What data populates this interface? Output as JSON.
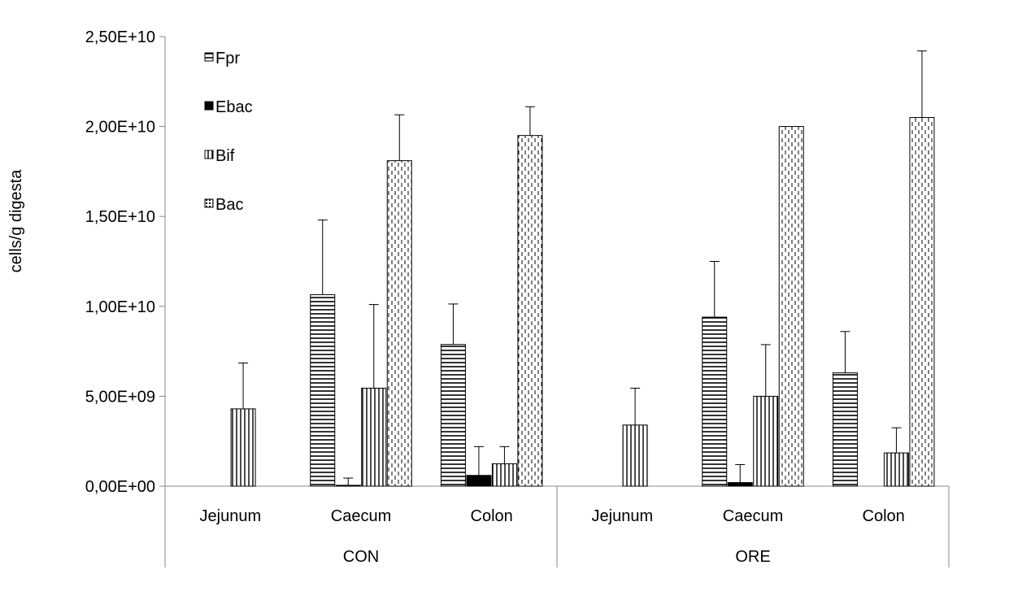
{
  "chart_data": {
    "type": "bar",
    "ylabel": "cells/g digesta",
    "ylim": [
      0,
      25000000000
    ],
    "yticks": [
      {
        "value": 0,
        "label": "0,00E+00"
      },
      {
        "value": 5000000000,
        "label": "5,00E+09"
      },
      {
        "value": 10000000000,
        "label": "1,00E+10"
      },
      {
        "value": 15000000000,
        "label": "1,50E+10"
      },
      {
        "value": 20000000000,
        "label": "2,00E+10"
      },
      {
        "value": 25000000000,
        "label": "2,50E+10"
      }
    ],
    "groups": [
      "CON",
      "ORE"
    ],
    "categories": [
      "Jejunum",
      "Caecum",
      "Colon",
      "Jejunum",
      "Caecum",
      "Colon"
    ],
    "legend_position": "top-left",
    "grid": false,
    "series": [
      {
        "name": "Fpr",
        "pattern": "horizontal-lines",
        "values": [
          0,
          10650000000,
          7880000000,
          0,
          9400000000,
          6300000000
        ],
        "errors": [
          0,
          4150000000,
          2250000000,
          0,
          3100000000,
          2300000000
        ]
      },
      {
        "name": "Ebac",
        "pattern": "solid-black",
        "values": [
          0,
          50000000,
          600000000,
          0,
          200000000,
          0
        ],
        "errors": [
          0,
          400000000,
          1600000000,
          0,
          1000000000,
          0
        ]
      },
      {
        "name": "Bif",
        "pattern": "vertical-lines",
        "values": [
          4300000000,
          5450000000,
          1250000000,
          3400000000,
          5000000000,
          1850000000
        ],
        "errors": [
          2550000000,
          4650000000,
          950000000,
          2050000000,
          2870000000,
          1400000000
        ]
      },
      {
        "name": "Bac",
        "pattern": "dashed-vertical",
        "values": [
          0,
          18100000000,
          19500000000,
          0,
          20000000000,
          20500000000
        ],
        "errors": [
          0,
          2550000000,
          1600000000,
          0,
          0,
          3700000000
        ]
      }
    ]
  }
}
